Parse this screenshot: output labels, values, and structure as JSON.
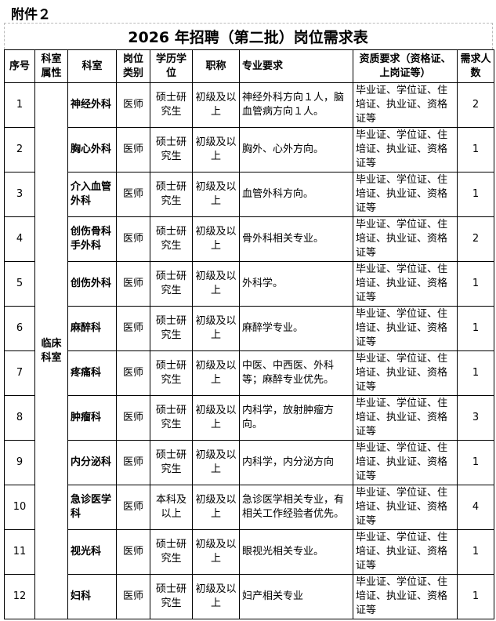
{
  "attachment": "附件２",
  "title": "2026 年招聘（第二批）岗位需求表",
  "headers": {
    "no": "序号",
    "attr": "科室属性",
    "dept": "科室",
    "type": "岗位类别",
    "edu": "学历学位",
    "rank": "职称",
    "major": "专业要求",
    "qual": "资质要求（资格证、上岗证等）",
    "count": "需求人数"
  },
  "dept_attr": "临床科室",
  "rows": [
    {
      "no": "1",
      "dept": "神经外科",
      "type": "医师",
      "edu": "硕士研究生",
      "rank": "初级及以上",
      "major": "神经外科方向１人，脑血管病方向１人。",
      "qual": "毕业证、学位证、住培证、执业证、资格证等",
      "count": "2"
    },
    {
      "no": "2",
      "dept": "胸心外科",
      "type": "医师",
      "edu": "硕士研究生",
      "rank": "初级及以上",
      "major": "胸外、心外方向。",
      "qual": "毕业证、学位证、住培证、执业证、资格证等",
      "count": "1"
    },
    {
      "no": "3",
      "dept": "介入血管外科",
      "type": "医师",
      "edu": "硕士研究生",
      "rank": "初级及以上",
      "major": "血管外科方向。",
      "qual": "毕业证、学位证、住培证、执业证、资格证等",
      "count": "1"
    },
    {
      "no": "4",
      "dept": "创伤骨科手外科",
      "type": "医师",
      "edu": "硕士研究生",
      "rank": "初级及以上",
      "major": "骨外科相关专业。",
      "qual": "毕业证、学位证、住培证、执业证、资格证等",
      "count": "2"
    },
    {
      "no": "5",
      "dept": "创伤外科",
      "type": "医师",
      "edu": "硕士研究生",
      "rank": "初级及以上",
      "major": "外科学。",
      "qual": "毕业证、学位证、住培证、执业证、资格证等",
      "count": "1"
    },
    {
      "no": "6",
      "dept": "麻醉科",
      "type": "医师",
      "edu": "硕士研究生",
      "rank": "初级及以上",
      "major": "麻醉学专业。",
      "qual": "毕业证、学位证、住培证、执业证、资格证等",
      "count": "1"
    },
    {
      "no": "7",
      "dept": "疼痛科",
      "type": "医师",
      "edu": "硕士研究生",
      "rank": "初级及以上",
      "major": "中医、中西医、外科等；麻醉专业优先。",
      "qual": "毕业证、学位证、住培证、执业证、资格证等",
      "count": "1"
    },
    {
      "no": "8",
      "dept": "肿瘤科",
      "type": "医师",
      "edu": "硕士研究生",
      "rank": "初级及以上",
      "major": "内科学，放射肿瘤方向。",
      "qual": "毕业证、学位证、住培证、执业证、资格证等",
      "count": "3"
    },
    {
      "no": "9",
      "dept": "内分泌科",
      "type": "医师",
      "edu": "硕士研究生",
      "rank": "初级及以上",
      "major": "内科学，内分泌方向",
      "qual": "毕业证、学位证、住培证、执业证、资格证等",
      "count": "1"
    },
    {
      "no": "10",
      "dept": "急诊医学科",
      "type": "医师",
      "edu": "本科及以上",
      "rank": "初级及以上",
      "major": "急诊医学相关专业，有相关工作经验者优先。",
      "qual": "毕业证、学位证、住培证、执业证、资格证等",
      "count": "4"
    },
    {
      "no": "11",
      "dept": "视光科",
      "type": "医师",
      "edu": "硕士研究生",
      "rank": "初级及以上",
      "major": "眼视光相关专业。",
      "qual": "毕业证、学位证、住培证、执业证、资格证等",
      "count": "1"
    },
    {
      "no": "12",
      "dept": "妇科",
      "type": "医师",
      "edu": "硕士研究生",
      "rank": "初级及以上",
      "major": "妇产相关专业",
      "qual": "毕业证、学位证、住培证、执业证、资格证等",
      "count": "1"
    }
  ]
}
